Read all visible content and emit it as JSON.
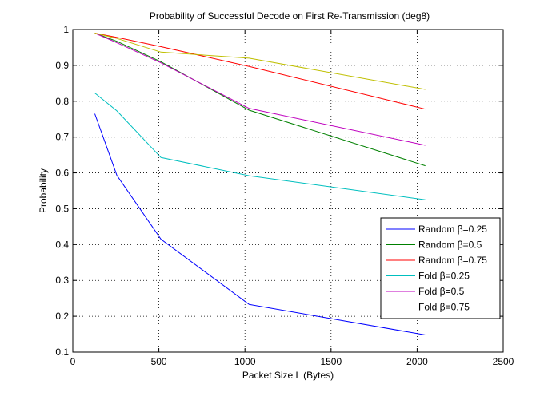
{
  "chart_data": {
    "type": "line",
    "title": "Probability of Successful Decode on First Re-Transmission (deg8)",
    "xlabel": "Packet Size L (Bytes)",
    "ylabel": "Probability",
    "xlim": [
      0,
      2500
    ],
    "ylim": [
      0.1,
      1
    ],
    "xticks": [
      0,
      500,
      1000,
      1500,
      2000,
      2500
    ],
    "yticks": [
      0.1,
      0.2,
      0.3,
      0.4,
      0.5,
      0.6,
      0.7,
      0.8,
      0.9,
      1
    ],
    "xtick_labels": [
      "0",
      "500",
      "1000",
      "1500",
      "2000",
      "2500"
    ],
    "ytick_labels": [
      "0.1",
      "0.2",
      "0.3",
      "0.4",
      "0.5",
      "0.6",
      "0.7",
      "0.8",
      "0.9",
      "1"
    ],
    "grid": true,
    "legend_position": "bottom-right",
    "series": [
      {
        "name": "Random β=0.25",
        "color": "#0000ff",
        "x": [
          128,
          256,
          512,
          1024,
          2048
        ],
        "y": [
          0.765,
          0.593,
          0.415,
          0.233,
          0.148
        ]
      },
      {
        "name": "Random β=0.5",
        "color": "#008000",
        "x": [
          128,
          256,
          512,
          1024,
          2048
        ],
        "y": [
          0.99,
          0.967,
          0.91,
          0.775,
          0.62
        ]
      },
      {
        "name": "Random β=0.75",
        "color": "#ff0000",
        "x": [
          128,
          256,
          512,
          1024,
          2048
        ],
        "y": [
          0.99,
          0.978,
          0.952,
          0.897,
          0.778
        ]
      },
      {
        "name": "Fold β=0.25",
        "color": "#00bfbf",
        "x": [
          128,
          256,
          512,
          1024,
          2048
        ],
        "y": [
          0.823,
          0.773,
          0.643,
          0.592,
          0.525
        ]
      },
      {
        "name": "Fold β=0.5",
        "color": "#bf00bf",
        "x": [
          128,
          256,
          512,
          1024,
          2048
        ],
        "y": [
          0.99,
          0.963,
          0.907,
          0.78,
          0.677
        ]
      },
      {
        "name": "Fold β=0.75",
        "color": "#bfbf00",
        "x": [
          128,
          256,
          512,
          1024,
          2048
        ],
        "y": [
          0.99,
          0.975,
          0.937,
          0.92,
          0.833
        ]
      }
    ]
  }
}
